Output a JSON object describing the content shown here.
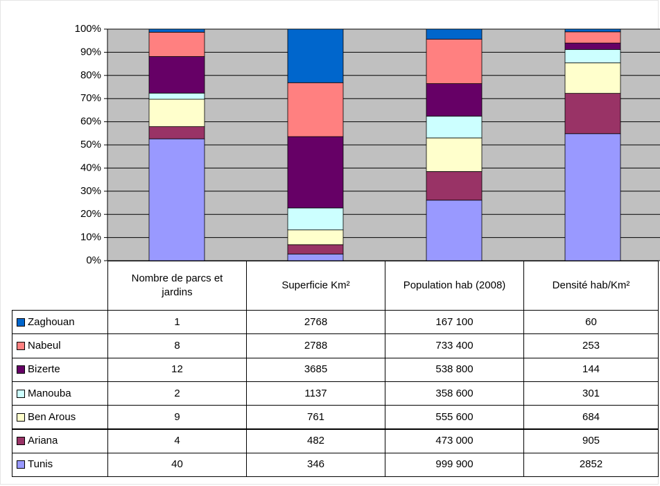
{
  "chart_data": {
    "type": "bar",
    "stacked": "percent",
    "categories": [
      "Nombre de parcs et jardins",
      "Superficie Km²",
      "Population hab (2008)",
      "Densité hab/Km²"
    ],
    "series": [
      {
        "name": "Zaghouan",
        "color": "#0066cc",
        "values": [
          1,
          2768,
          167100,
          60
        ],
        "value_labels": [
          "1",
          "2768",
          "167 100",
          "60"
        ]
      },
      {
        "name": "Nabeul",
        "color": "#ff8080",
        "values": [
          8,
          2788,
          733400,
          253
        ],
        "value_labels": [
          "8",
          "2788",
          "733 400",
          "253"
        ]
      },
      {
        "name": "Bizerte",
        "color": "#660066",
        "values": [
          12,
          3685,
          538800,
          144
        ],
        "value_labels": [
          "12",
          "3685",
          "538 800",
          "144"
        ]
      },
      {
        "name": "Manouba",
        "color": "#ccffff",
        "values": [
          2,
          1137,
          358600,
          301
        ],
        "value_labels": [
          "2",
          "1137",
          "358 600",
          "301"
        ]
      },
      {
        "name": "Ben Arous",
        "color": "#ffffcc",
        "values": [
          9,
          761,
          555600,
          684
        ],
        "value_labels": [
          "9",
          "761",
          "555 600",
          "684"
        ]
      },
      {
        "name": "Ariana",
        "color": "#993366",
        "values": [
          4,
          482,
          473000,
          905
        ],
        "value_labels": [
          "4",
          "482",
          "473 000",
          "905"
        ]
      },
      {
        "name": "Tunis",
        "color": "#9999ff",
        "values": [
          40,
          346,
          999900,
          2852
        ],
        "value_labels": [
          "40",
          "346",
          "999 900",
          "2852"
        ]
      }
    ],
    "ylim": [
      0,
      100
    ],
    "yticks": [
      {
        "value": 0,
        "label": "0%"
      },
      {
        "value": 10,
        "label": "10%"
      },
      {
        "value": 20,
        "label": "20%"
      },
      {
        "value": 30,
        "label": "30%"
      },
      {
        "value": 40,
        "label": "40%"
      },
      {
        "value": 50,
        "label": "50%"
      },
      {
        "value": 60,
        "label": "60%"
      },
      {
        "value": 70,
        "label": "70%"
      },
      {
        "value": 80,
        "label": "80%"
      },
      {
        "value": 90,
        "label": "90%"
      },
      {
        "value": 100,
        "label": "100%"
      }
    ],
    "grid": true,
    "plot_background": "#c0c0c0"
  }
}
